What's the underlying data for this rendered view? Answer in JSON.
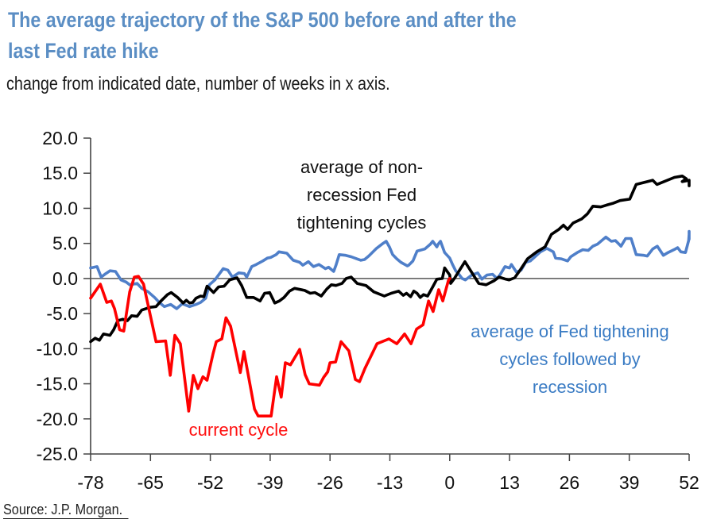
{
  "title": "The average trajectory of the S&P 500 before and after the last Fed rate hike",
  "title_lines": [
    "The average trajectory of the S&P 500 before and after the",
    "last Fed rate hike"
  ],
  "subtitle": "change from indicated date, number of weeks in x axis.",
  "source": "Source: J.P. Morgan.",
  "chart_data": {
    "type": "line",
    "title": "The average trajectory of the S&P 500 before and after the last Fed rate hike",
    "subtitle": "change from indicated date, number of weeks in x axis.",
    "xlabel": "",
    "ylabel": "",
    "xlim": [
      -78,
      52
    ],
    "ylim": [
      -25,
      20
    ],
    "xticks": [
      -78,
      -65,
      -52,
      -39,
      -26,
      -13,
      0,
      13,
      26,
      39,
      52
    ],
    "yticks": [
      20,
      15,
      10,
      5,
      0,
      -5,
      -10,
      -15,
      -20,
      -25
    ],
    "xtick_labels": [
      "-78",
      "-65",
      "-52",
      "-39",
      "-26",
      "-13",
      "0",
      "13",
      "26",
      "39",
      "52"
    ],
    "ytick_labels": [
      "20.0",
      "15.0",
      "10.0",
      "5.0",
      "0.0",
      "-5.0",
      "-10.0",
      "-15.0",
      "-20.0",
      "-25.0"
    ],
    "grid": false,
    "zero_line": true,
    "series": [
      {
        "name": "average of Fed tightening cycles followed by recession",
        "color": "#4f7fc9",
        "label_lines": [
          "average of Fed tightening",
          "cycles followed by",
          "recession"
        ],
        "points": [
          [
            -78,
            1.5
          ],
          [
            -76.6,
            1.7
          ],
          [
            -75.7,
            0.2
          ],
          [
            -74.7,
            0.7
          ],
          [
            -73.8,
            1.1
          ],
          [
            -72.6,
            1.0
          ],
          [
            -71.4,
            -0.2
          ],
          [
            -70.3,
            -0.5
          ],
          [
            -69.5,
            -0.9
          ],
          [
            -67.9,
            -0.7
          ],
          [
            -66.9,
            -1.4
          ],
          [
            -65.5,
            -1.9
          ],
          [
            -64.1,
            -2.7
          ],
          [
            -63.1,
            -3.4
          ],
          [
            -62,
            -4.0
          ],
          [
            -60.6,
            -3.7
          ],
          [
            -59.3,
            -4.3
          ],
          [
            -58.1,
            -3.6
          ],
          [
            -56.5,
            -4.0
          ],
          [
            -55.1,
            -3.7
          ],
          [
            -54.1,
            -3.4
          ],
          [
            -53,
            -2.8
          ],
          [
            -52.2,
            -0.9
          ],
          [
            -51,
            -0.2
          ],
          [
            -49.2,
            1.4
          ],
          [
            -48.2,
            1.2
          ],
          [
            -47.2,
            0.2
          ],
          [
            -45.8,
            0.8
          ],
          [
            -44.6,
            0.7
          ],
          [
            -44.1,
            0.2
          ],
          [
            -43,
            1.7
          ],
          [
            -42,
            2.0
          ],
          [
            -40.6,
            2.5
          ],
          [
            -39.6,
            2.9
          ],
          [
            -38.9,
            3.0
          ],
          [
            -37.7,
            3.4
          ],
          [
            -37.1,
            3.8
          ],
          [
            -35.4,
            3.6
          ],
          [
            -34,
            2.6
          ],
          [
            -32.6,
            2.3
          ],
          [
            -31.9,
            1.9
          ],
          [
            -30.7,
            2.4
          ],
          [
            -29.6,
            1.7
          ],
          [
            -28.4,
            2.0
          ],
          [
            -27,
            1.4
          ],
          [
            -26.3,
            1.6
          ],
          [
            -25.2,
            1.0
          ],
          [
            -24.7,
            1.9
          ],
          [
            -24,
            3.4
          ],
          [
            -22.6,
            3.3
          ],
          [
            -21.4,
            3.1
          ],
          [
            -20.2,
            2.8
          ],
          [
            -19.3,
            2.6
          ],
          [
            -18.5,
            2.7
          ],
          [
            -17.6,
            3.2
          ],
          [
            -15.9,
            4.3
          ],
          [
            -14.5,
            5.0
          ],
          [
            -13.8,
            5.3
          ],
          [
            -13.1,
            4.5
          ],
          [
            -12.4,
            3.4
          ],
          [
            -11.5,
            2.8
          ],
          [
            -10.6,
            2.3
          ],
          [
            -9.2,
            1.8
          ],
          [
            -8.9,
            1.9
          ],
          [
            -8,
            2.5
          ],
          [
            -7.1,
            3.9
          ],
          [
            -5.4,
            4.2
          ],
          [
            -4.2,
            4.9
          ],
          [
            -3.7,
            5.3
          ],
          [
            -2.8,
            4.5
          ],
          [
            -2.5,
            4.9
          ],
          [
            -2,
            5.3
          ],
          [
            -1.1,
            3.7
          ],
          [
            0,
            2.9
          ],
          [
            0.6,
            2.0
          ],
          [
            1.3,
            1.1
          ],
          [
            2,
            0.6
          ],
          [
            2.7,
            0.0
          ],
          [
            3.4,
            -0.2
          ],
          [
            4.8,
            0.5
          ],
          [
            6.1,
            0.8
          ],
          [
            7,
            -0.1
          ],
          [
            8.1,
            0.5
          ],
          [
            9.3,
            0.6
          ],
          [
            10.3,
            0.0
          ],
          [
            11,
            0.6
          ],
          [
            12,
            1.7
          ],
          [
            13,
            1.5
          ],
          [
            13.4,
            2.0
          ],
          [
            14.5,
            0.9
          ],
          [
            15.5,
            1.2
          ],
          [
            16.5,
            2.3
          ],
          [
            17.5,
            2.5
          ],
          [
            18.5,
            3.1
          ],
          [
            19.7,
            3.8
          ],
          [
            21.1,
            4.3
          ],
          [
            22.5,
            3.8
          ],
          [
            23,
            2.9
          ],
          [
            24.2,
            2.8
          ],
          [
            25.6,
            2.5
          ],
          [
            26.3,
            3.1
          ],
          [
            27.7,
            3.7
          ],
          [
            28.9,
            4.1
          ],
          [
            30.1,
            4.0
          ],
          [
            31.1,
            4.6
          ],
          [
            32.1,
            4.9
          ],
          [
            33.9,
            5.9
          ],
          [
            35.1,
            5.3
          ],
          [
            36,
            5.4
          ],
          [
            37.2,
            4.6
          ],
          [
            38.2,
            5.7
          ],
          [
            39.4,
            5.7
          ],
          [
            40.5,
            3.4
          ],
          [
            42.2,
            3.3
          ],
          [
            42.9,
            3.2
          ],
          [
            44.1,
            4.2
          ],
          [
            45.1,
            4.6
          ],
          [
            46.4,
            3.3
          ],
          [
            47.4,
            3.7
          ],
          [
            49,
            4.2
          ],
          [
            49.5,
            4.4
          ],
          [
            50.2,
            3.8
          ],
          [
            51.2,
            3.7
          ],
          [
            51.9,
            5.4
          ],
          [
            52,
            6.3
          ],
          [
            52,
            6.7
          ],
          [
            52,
            5.6
          ]
        ]
      },
      {
        "name": "average of non-recession Fed tightening cycles",
        "color": "#000000",
        "label_lines": [
          "average of non-",
          "recession Fed",
          "tightening cycles"
        ],
        "points": [
          [
            -78,
            -9.0
          ],
          [
            -77,
            -8.5
          ],
          [
            -76.1,
            -8.8
          ],
          [
            -75.2,
            -7.9
          ],
          [
            -73.8,
            -8.1
          ],
          [
            -73,
            -7.3
          ],
          [
            -72.1,
            -6.0
          ],
          [
            -71,
            -5.8
          ],
          [
            -70,
            -6.0
          ],
          [
            -69.1,
            -5.3
          ],
          [
            -67.9,
            -5.4
          ],
          [
            -66.9,
            -4.5
          ],
          [
            -65.1,
            -4.1
          ],
          [
            -63.8,
            -4.0
          ],
          [
            -62.7,
            -3.2
          ],
          [
            -61.3,
            -2.3
          ],
          [
            -60.5,
            -2.0
          ],
          [
            -59.1,
            -2.7
          ],
          [
            -57.9,
            -3.5
          ],
          [
            -57.2,
            -3.1
          ],
          [
            -56.5,
            -3.5
          ],
          [
            -55.8,
            -3.4
          ],
          [
            -55.1,
            -2.8
          ],
          [
            -54.1,
            -2.5
          ],
          [
            -53.4,
            -2.6
          ],
          [
            -52.7,
            -1.1
          ],
          [
            -51.3,
            -2.0
          ],
          [
            -50.2,
            -1.2
          ],
          [
            -49,
            -1.1
          ],
          [
            -47.8,
            -0.2
          ],
          [
            -46.2,
            0.1
          ],
          [
            -45.2,
            -1.0
          ],
          [
            -44.1,
            -2.7
          ],
          [
            -42.6,
            -2.7
          ],
          [
            -41.2,
            -3.2
          ],
          [
            -40.2,
            -2.1
          ],
          [
            -39.1,
            -2.0
          ],
          [
            -38,
            -3.5
          ],
          [
            -37,
            -3.2
          ],
          [
            -36,
            -2.7
          ],
          [
            -34.8,
            -1.8
          ],
          [
            -33.7,
            -1.4
          ],
          [
            -31.5,
            -1.7
          ],
          [
            -30.3,
            -2.1
          ],
          [
            -29.3,
            -2.0
          ],
          [
            -27.9,
            -2.5
          ],
          [
            -26.7,
            -1.5
          ],
          [
            -25.7,
            -0.9
          ],
          [
            -24.7,
            -1.0
          ],
          [
            -23.4,
            -0.7
          ],
          [
            -22.5,
            0.0
          ],
          [
            -21.4,
            0.2
          ],
          [
            -20.1,
            -0.7
          ],
          [
            -18.2,
            -1.0
          ],
          [
            -16.5,
            -1.9
          ],
          [
            -14.2,
            -2.5
          ],
          [
            -12.7,
            -2.1
          ],
          [
            -11.1,
            -1.8
          ],
          [
            -10.1,
            -2.4
          ],
          [
            -9.4,
            -2.1
          ],
          [
            -8.5,
            -2.6
          ],
          [
            -7.8,
            -1.8
          ],
          [
            -7.1,
            -2.1
          ],
          [
            -6.4,
            -2.7
          ],
          [
            -5.7,
            -2.3
          ],
          [
            -4.8,
            -2.5
          ],
          [
            -3.7,
            -1.2
          ],
          [
            -2.8,
            -0.1
          ],
          [
            -1.6,
            0.0
          ],
          [
            -1.1,
            1.5
          ],
          [
            0,
            0.5
          ],
          [
            0.2,
            -0.7
          ],
          [
            1,
            0.0
          ],
          [
            3.3,
            2.4
          ],
          [
            6.3,
            -0.7
          ],
          [
            7.9,
            -0.9
          ],
          [
            9.7,
            -0.3
          ],
          [
            10.7,
            0.2
          ],
          [
            12.2,
            -0.1
          ],
          [
            12.9,
            -0.2
          ],
          [
            14.1,
            0.1
          ],
          [
            15.2,
            1.1
          ],
          [
            16.9,
            2.8
          ],
          [
            18.9,
            3.8
          ],
          [
            20.7,
            4.5
          ],
          [
            22.1,
            6.3
          ],
          [
            23.7,
            7.0
          ],
          [
            24.7,
            7.6
          ],
          [
            25.6,
            7.0
          ],
          [
            26.8,
            7.9
          ],
          [
            28.7,
            8.5
          ],
          [
            29.9,
            9.2
          ],
          [
            31.1,
            10.3
          ],
          [
            32.8,
            10.2
          ],
          [
            34.3,
            10.5
          ],
          [
            35.4,
            10.7
          ],
          [
            37,
            11.1
          ],
          [
            39.1,
            11.3
          ],
          [
            40.5,
            13.4
          ],
          [
            44.1,
            14.0
          ],
          [
            45,
            13.4
          ],
          [
            48.8,
            14.4
          ],
          [
            50.5,
            14.6
          ],
          [
            51.4,
            14.2
          ],
          [
            50.5,
            13.8
          ],
          [
            52,
            14.0
          ],
          [
            52,
            13.2
          ]
        ]
      },
      {
        "name": "current cycle",
        "color": "#ff0000",
        "label_lines": [
          "current cycle"
        ],
        "points": [
          [
            -78,
            -2.8
          ],
          [
            -75.9,
            -0.8
          ],
          [
            -74.5,
            -3.4
          ],
          [
            -73.5,
            -3.2
          ],
          [
            -72.8,
            -4.3
          ],
          [
            -71.7,
            -7.3
          ],
          [
            -70.8,
            -7.5
          ],
          [
            -69.5,
            -1.9
          ],
          [
            -68.5,
            0.2
          ],
          [
            -67.6,
            0.3
          ],
          [
            -66.5,
            -0.8
          ],
          [
            -63.8,
            -9.0
          ],
          [
            -61.7,
            -8.9
          ],
          [
            -60.7,
            -13.8
          ],
          [
            -59.7,
            -8.1
          ],
          [
            -58.5,
            -9.3
          ],
          [
            -56.7,
            -18.9
          ],
          [
            -55.7,
            -13.8
          ],
          [
            -54.7,
            -15.7
          ],
          [
            -53.6,
            -14.0
          ],
          [
            -52.7,
            -14.5
          ],
          [
            -51.4,
            -10.7
          ],
          [
            -50.7,
            -9.0
          ],
          [
            -49.5,
            -8.6
          ],
          [
            -48.6,
            -5.6
          ],
          [
            -47.6,
            -6.8
          ],
          [
            -45.5,
            -13.4
          ],
          [
            -44.7,
            -10.4
          ],
          [
            -42.4,
            -18.6
          ],
          [
            -41.6,
            -19.6
          ],
          [
            -38.8,
            -19.6
          ],
          [
            -37.6,
            -14.0
          ],
          [
            -36.6,
            -16.9
          ],
          [
            -35.7,
            -12.0
          ],
          [
            -34.6,
            -12.3
          ],
          [
            -32.6,
            -10.1
          ],
          [
            -31.4,
            -13.7
          ],
          [
            -30.5,
            -15.0
          ],
          [
            -28.3,
            -15.2
          ],
          [
            -27.4,
            -14.1
          ],
          [
            -26.5,
            -13.3
          ],
          [
            -26,
            -12.0
          ],
          [
            -24.8,
            -11.9
          ],
          [
            -23.6,
            -9.0
          ],
          [
            -21.9,
            -10.3
          ],
          [
            -20.5,
            -14.4
          ],
          [
            -19.6,
            -14.7
          ],
          [
            -18.4,
            -12.8
          ],
          [
            -15.8,
            -9.3
          ],
          [
            -13.2,
            -8.6
          ],
          [
            -11.5,
            -9.3
          ],
          [
            -9.8,
            -7.9
          ],
          [
            -8.4,
            -9.3
          ],
          [
            -7.2,
            -7.2
          ],
          [
            -5.8,
            -6.6
          ],
          [
            -4.6,
            -3.2
          ],
          [
            -3.6,
            -4.7
          ],
          [
            -2.4,
            -1.6
          ],
          [
            -1.5,
            -3.2
          ],
          [
            -0.3,
            -0.3
          ],
          [
            0,
            0.0
          ]
        ]
      }
    ]
  }
}
